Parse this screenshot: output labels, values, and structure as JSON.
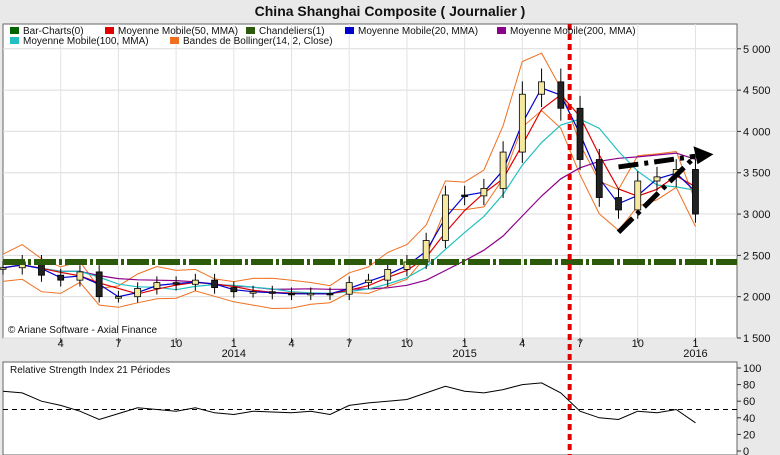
{
  "header": {
    "title": "China Shanghai Composite  ( Journalier )"
  },
  "copyright": "© Ariane Software - Axial Finance",
  "colors": {
    "bars": "#006400",
    "ma50": "#e00000",
    "chandelier": "#2a5a0a",
    "ma20": "#0000cc",
    "ma200": "#8b008b",
    "ma100": "#20c0c0",
    "bollinger": "#f07020",
    "annotation": "#e00000",
    "trendline": "#000000"
  },
  "chart_data": [
    {
      "type": "line",
      "title": "China Shanghai Composite  ( Journalier )",
      "ylim": [
        1500,
        5300
      ],
      "yticks": [
        1500,
        2000,
        2500,
        3000,
        3500,
        4000,
        4500,
        5000
      ],
      "ytick_labels": [
        "1 500",
        "2 000",
        "2 500",
        "3 000",
        "3 500",
        "4 000",
        "4 500",
        "5 000"
      ],
      "x_ticks": [
        {
          "x": "2013-04",
          "label": "4"
        },
        {
          "x": "2013-07",
          "label": "7"
        },
        {
          "x": "2013-10",
          "label": "10"
        },
        {
          "x": "2014-01",
          "label": "1"
        },
        {
          "x": "2014-04",
          "label": "4"
        },
        {
          "x": "2014-07",
          "label": "7"
        },
        {
          "x": "2014-10",
          "label": "10"
        },
        {
          "x": "2015-01",
          "label": "1"
        },
        {
          "x": "2015-04",
          "label": "4"
        },
        {
          "x": "2015-07",
          "label": "7"
        },
        {
          "x": "2015-10",
          "label": "10"
        },
        {
          "x": "2016-01",
          "label": "1"
        }
      ],
      "year_labels": [
        {
          "x": "2014-01",
          "label": "2014"
        },
        {
          "x": "2015-01",
          "label": "2015"
        },
        {
          "x": "2016-01",
          "label": "2016"
        }
      ],
      "legend": [
        {
          "name": "Bar-Charts(0)",
          "color": "#006400"
        },
        {
          "name": "Moyenne Mobile(50, MMA)",
          "color": "#e00000"
        },
        {
          "name": "Chandeliers(1)",
          "color": "#2a5a0a"
        },
        {
          "name": "Moyenne Mobile(20, MMA)",
          "color": "#0000cc"
        },
        {
          "name": "Moyenne Mobile(200, MMA)",
          "color": "#8b008b"
        },
        {
          "name": "Moyenne Mobile(100, MMA)",
          "color": "#20c0c0"
        },
        {
          "name": "Bandes de Bollinger(14, 2, Close)",
          "color": "#f07020"
        }
      ],
      "legend_position": "top-left",
      "price": {
        "x": [
          "2013-01",
          "2013-02",
          "2013-03",
          "2013-04",
          "2013-05",
          "2013-06",
          "2013-07",
          "2013-08",
          "2013-09",
          "2013-10",
          "2013-11",
          "2013-12",
          "2014-01",
          "2014-02",
          "2014-03",
          "2014-04",
          "2014-05",
          "2014-06",
          "2014-07",
          "2014-08",
          "2014-09",
          "2014-10",
          "2014-11",
          "2014-12",
          "2015-01",
          "2015-02",
          "2015-03",
          "2015-04",
          "2015-05",
          "2015-06",
          "2015-07",
          "2015-08",
          "2015-09",
          "2015-10",
          "2015-11",
          "2015-12",
          "2016-01"
        ],
        "close": [
          2350,
          2420,
          2260,
          2200,
          2300,
          2000,
          2000,
          2100,
          2170,
          2150,
          2200,
          2110,
          2060,
          2060,
          2040,
          2030,
          2040,
          2030,
          2170,
          2200,
          2330,
          2420,
          2680,
          3230,
          3220,
          3310,
          3750,
          4450,
          4600,
          4280,
          3660,
          3200,
          3050,
          3400,
          3450,
          3540,
          3000
        ]
      },
      "horizontal_lines": [
        {
          "y": 2420,
          "style": "dash-dot",
          "color": "#2a5a0a"
        }
      ],
      "vertical_lines": [
        {
          "x": "2015-06-15",
          "style": "dotted",
          "color": "#e00000"
        }
      ],
      "trendlines": [
        {
          "from": [
            "2015-09",
            2780
          ],
          "to": [
            "2016-01",
            3700
          ]
        },
        {
          "from": [
            "2015-09",
            3570
          ],
          "to": [
            "2016-01",
            3700
          ]
        }
      ],
      "grid": true
    },
    {
      "type": "line",
      "title": "Relative Strength Index 21 Périodes",
      "ylim": [
        0,
        100
      ],
      "yticks": [
        0,
        20,
        40,
        60,
        80,
        100
      ],
      "ytick_labels": [
        "0",
        "20",
        "40",
        "60",
        "80",
        "100"
      ],
      "horizontal_lines": [
        {
          "y": 50,
          "style": "dashed"
        }
      ],
      "series": [
        {
          "values": [
            72,
            70,
            60,
            55,
            48,
            38,
            45,
            52,
            50,
            48,
            52,
            46,
            44,
            48,
            47,
            46,
            48,
            44,
            55,
            58,
            60,
            62,
            70,
            78,
            72,
            70,
            74,
            80,
            82,
            70,
            48,
            40,
            38,
            48,
            46,
            50,
            34
          ]
        }
      ]
    }
  ]
}
